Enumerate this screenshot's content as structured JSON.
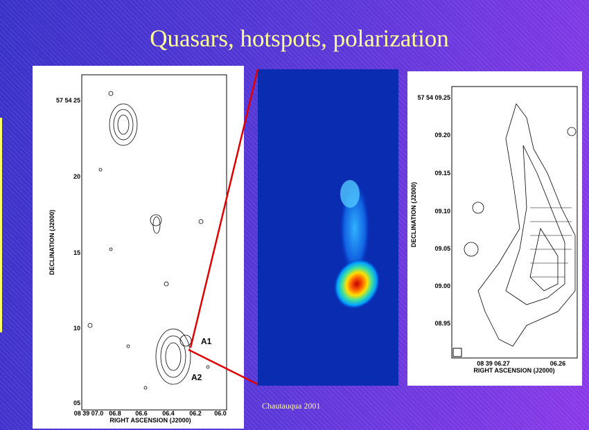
{
  "slide": {
    "title": "Quasars, hotspots, polarization",
    "footer": "Chautauqua 2001",
    "left_panel": {
      "y_ticks": [
        "57 54 25",
        "20",
        "15",
        "10",
        "05"
      ],
      "x_ticks": [
        "08 39 07.0",
        "06.8",
        "06.6",
        "06.4",
        "06.2",
        "06.0"
      ],
      "x_label": "RIGHT ASCENSION (J2000)",
      "y_label": "DECLINATION (J2000)",
      "annotations": [
        "A1",
        "A2"
      ]
    },
    "right_panel": {
      "y_ticks": [
        "57 54 09.25",
        "09.20",
        "09.15",
        "09.10",
        "09.05",
        "09.00",
        "08.95"
      ],
      "x_ticks": [
        "08 39 06.27",
        "06.26"
      ],
      "x_label": "RIGHT ASCENSION (J2000)",
      "y_label": "DECLINATION (J2000)"
    }
  }
}
